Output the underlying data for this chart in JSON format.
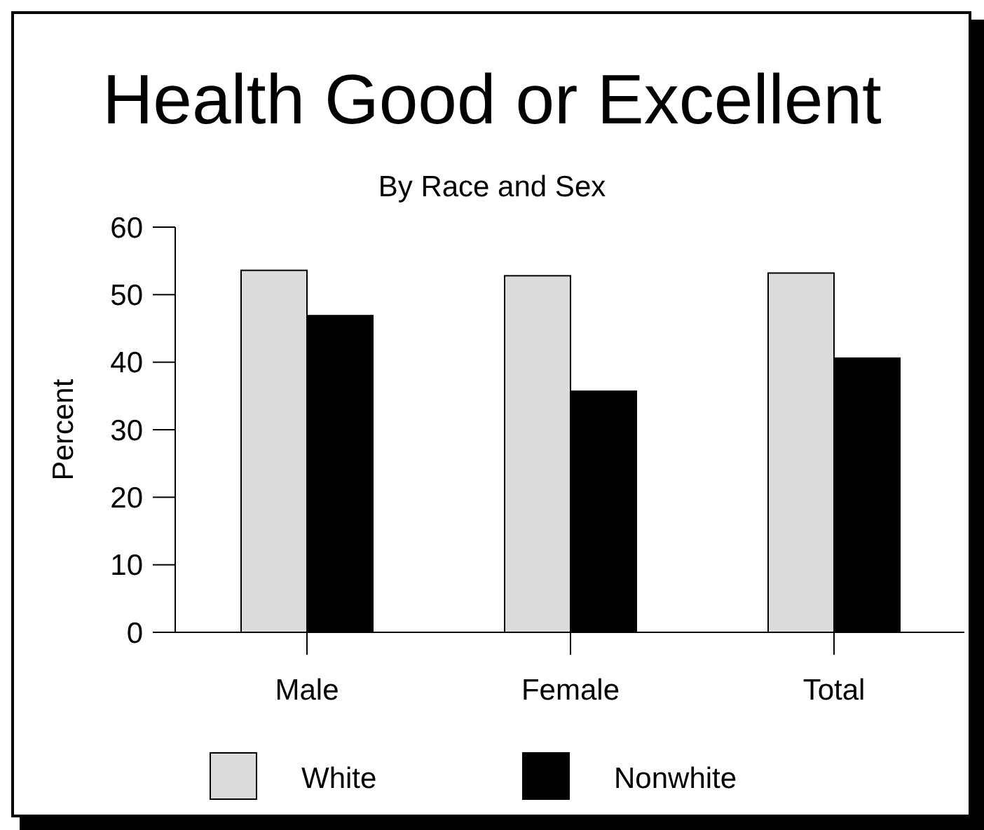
{
  "chart_data": {
    "type": "bar",
    "title": "Health Good or Excellent",
    "subtitle": "By Race and Sex",
    "ylabel": "Percent",
    "categories": [
      "Male",
      "Female",
      "Total"
    ],
    "series": [
      {
        "name": "White",
        "color": "#dcdcdc",
        "values": [
          53.6,
          52.8,
          53.2
        ]
      },
      {
        "name": "Nonwhite",
        "color": "#000000",
        "values": [
          46.9,
          35.7,
          40.6
        ]
      }
    ],
    "ylim": [
      0,
      60
    ],
    "yticks": [
      0,
      10,
      20,
      30,
      40,
      50,
      60
    ],
    "grid": false,
    "legend": "bottom"
  }
}
